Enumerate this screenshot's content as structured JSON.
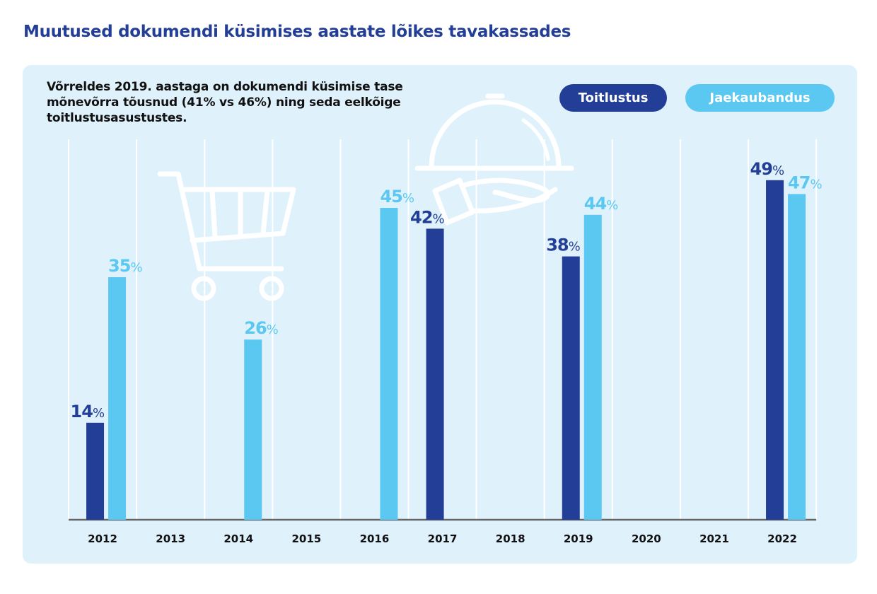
{
  "title": "Muutused dokumendi küsimises aastate lõikes tavakassades",
  "subtitle": "Võrreldes 2019. aastaga on dokumendi küsimise tase mõnevõrra tõusnud (41% vs 46%) ning seda eelkõige toitlustusasustustes.",
  "colors": {
    "toitlustus": "#233E96",
    "jaekaubandus": "#5BC8F2",
    "panel": "#DFF2FC",
    "title": "#233E96"
  },
  "icons": [
    "shopping-cart-icon",
    "serving-cloche-icon"
  ],
  "chart_data": {
    "type": "bar",
    "title": "Muutused dokumendi küsimises aastate lõikes tavakassades",
    "categories": [
      "2012",
      "2013",
      "2014",
      "2015",
      "2016",
      "2017",
      "2018",
      "2019",
      "2020",
      "2021",
      "2022"
    ],
    "series": [
      {
        "name": "Toitlustus",
        "color": "#233E96",
        "values": [
          14,
          null,
          null,
          null,
          null,
          42,
          null,
          38,
          null,
          null,
          49
        ]
      },
      {
        "name": "Jaekaubandus",
        "color": "#5BC8F2",
        "values": [
          35,
          null,
          26,
          null,
          45,
          null,
          null,
          44,
          null,
          null,
          47
        ]
      }
    ],
    "value_suffix": "%",
    "ylim": [
      0,
      55
    ],
    "grid": "vertical",
    "legend": "top-right",
    "xlabel": "",
    "ylabel": ""
  }
}
